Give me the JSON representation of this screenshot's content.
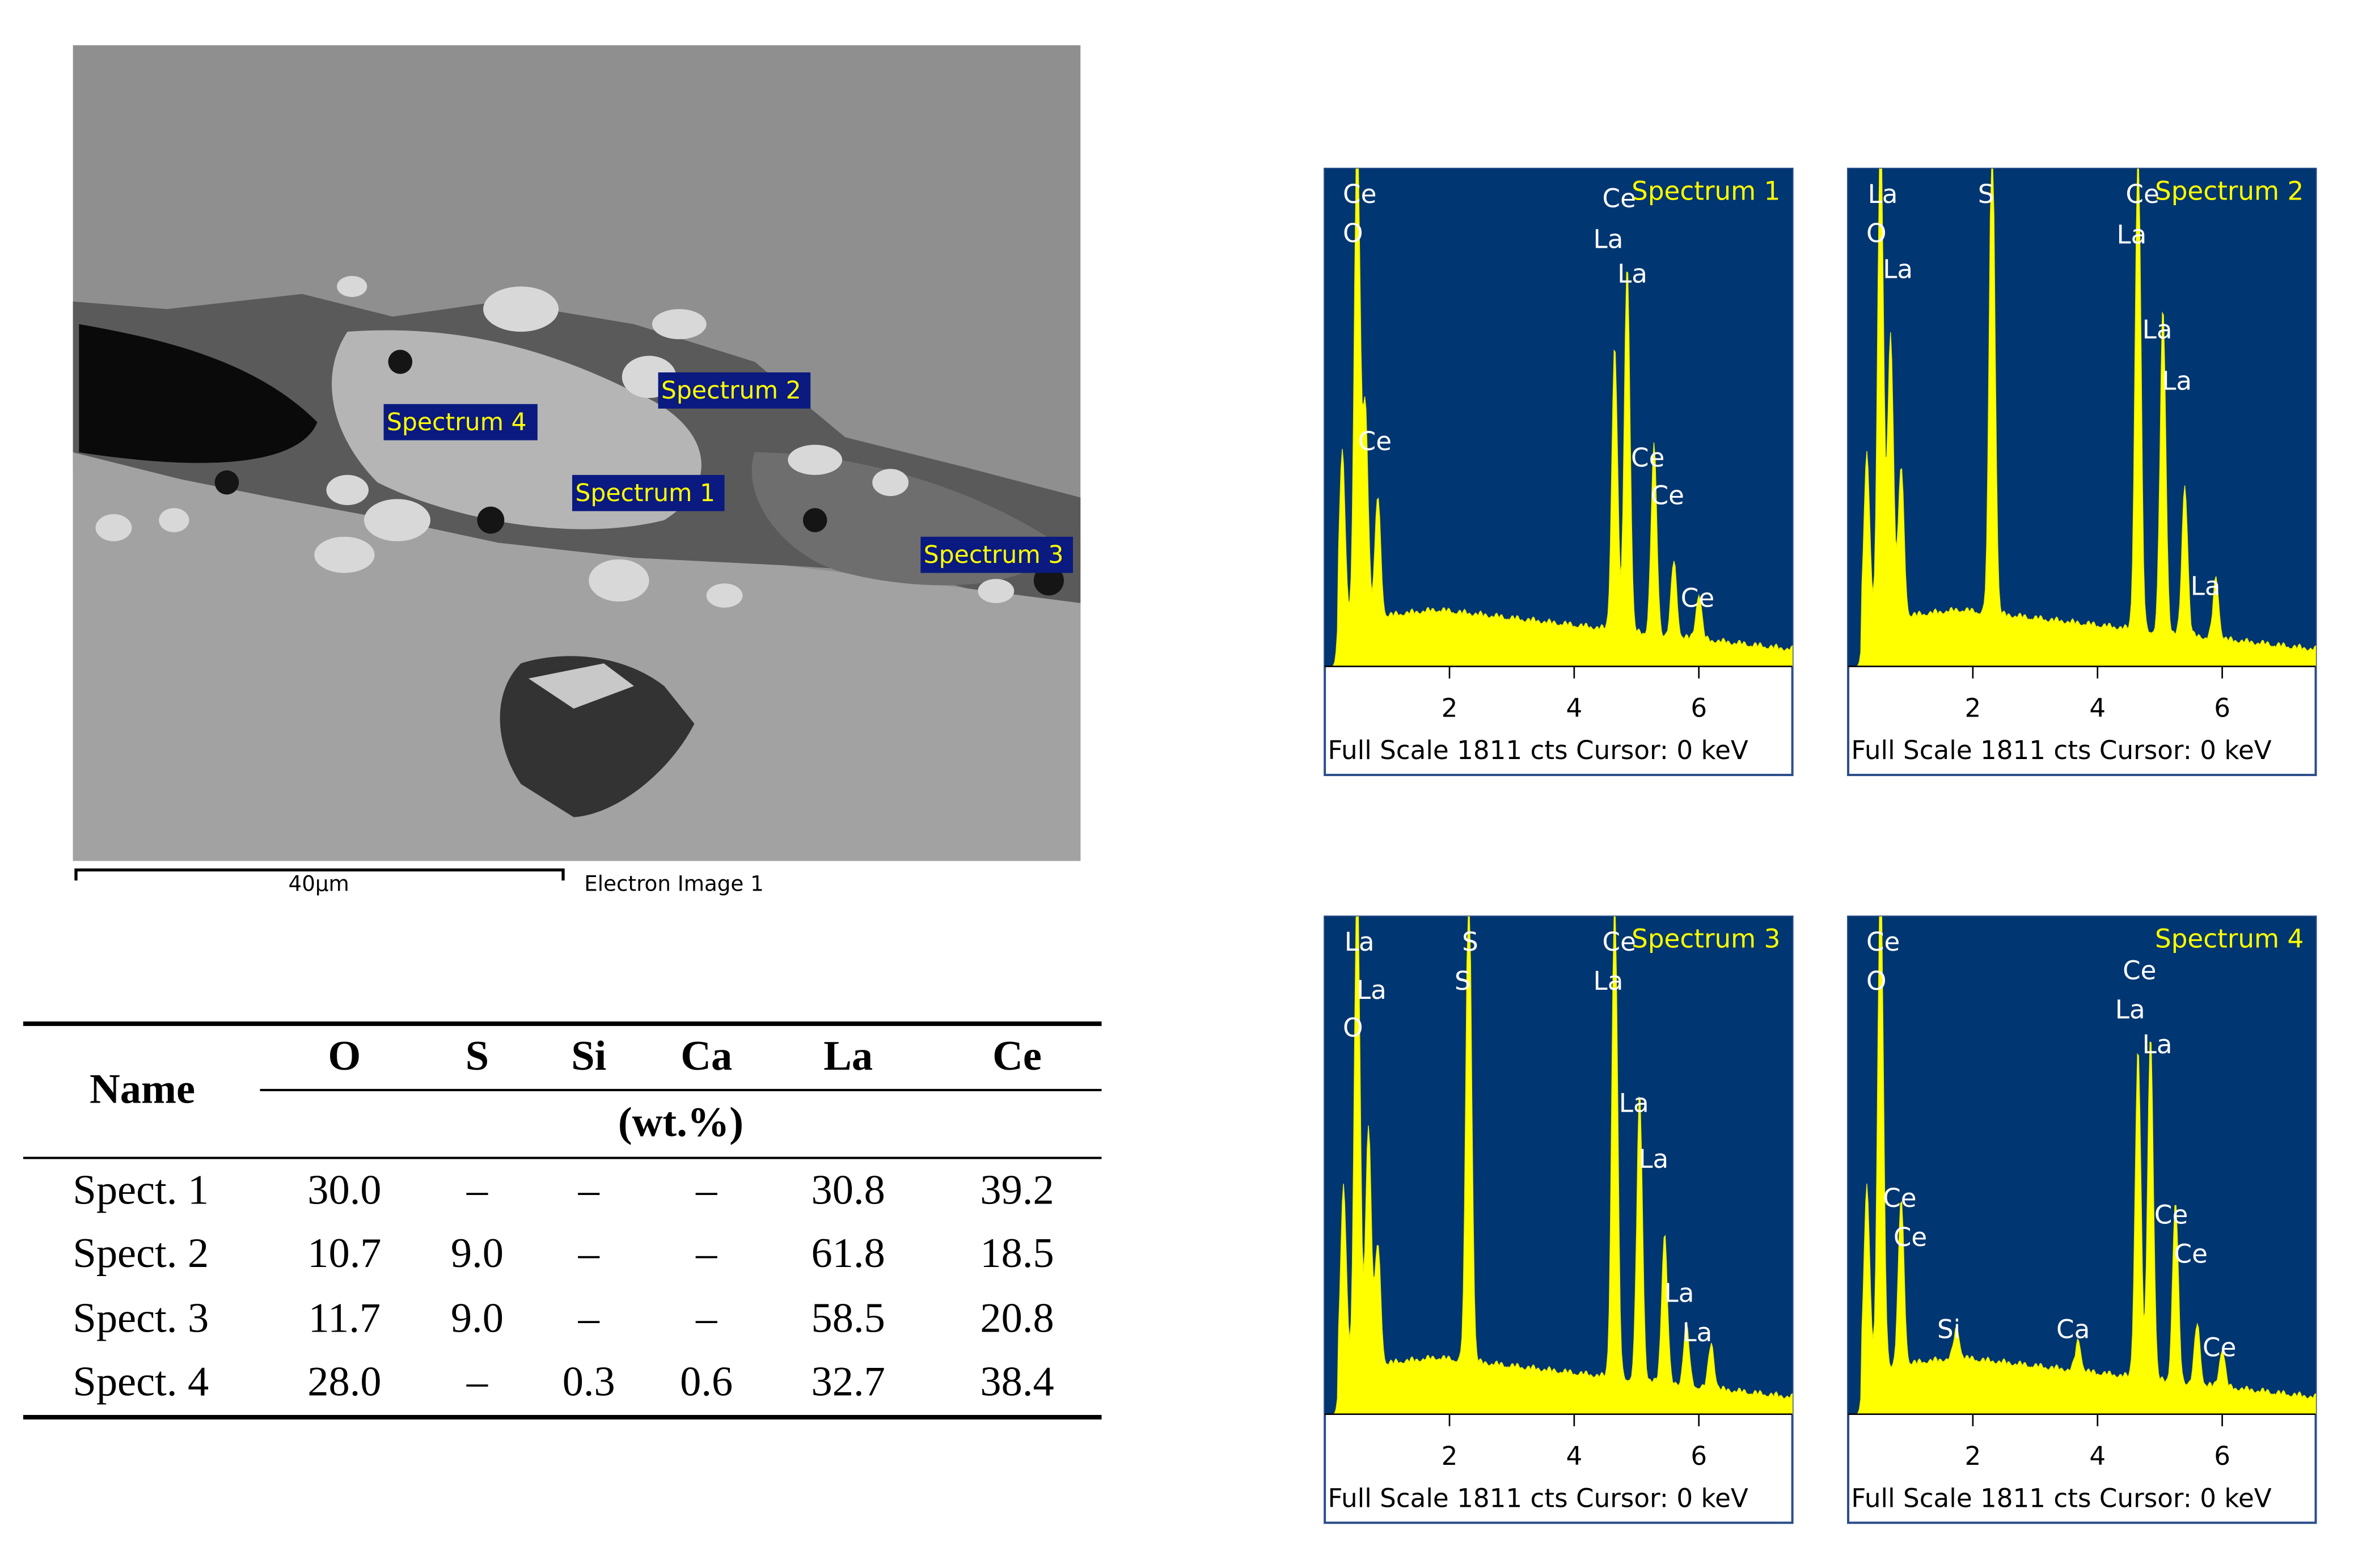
{
  "sem_image": {
    "labels": [
      "Spectrum 4",
      "Spectrum 2",
      "Spectrum 1",
      "Spectrum 3"
    ],
    "scale_bar": "40µm",
    "caption": "Electron Image 1"
  },
  "table": {
    "header": {
      "name": "Name",
      "elements": [
        "O",
        "S",
        "Si",
        "Ca",
        "La",
        "Ce"
      ],
      "unit": "(wt.%)"
    },
    "rows": [
      [
        "Spect. 1",
        "30.0",
        "–",
        "–",
        "–",
        "30.8",
        "39.2"
      ],
      [
        "Spect. 2",
        "10.7",
        "9.0",
        "–",
        "–",
        "61.8",
        "18.5"
      ],
      [
        "Spect. 3",
        "11.7",
        "9.0",
        "–",
        "–",
        "58.5",
        "20.8"
      ],
      [
        "Spect. 4",
        "28.0",
        "–",
        "0.3",
        "0.6",
        "32.7",
        "38.4"
      ]
    ]
  },
  "spectra": [
    {
      "title": "Spectrum 1",
      "xlim": [
        0,
        7.5
      ],
      "xticks": [
        2,
        4,
        6
      ],
      "footer": "Full Scale 1811 cts Cursor: 0 keV",
      "peak_labels": [
        "Ce",
        "O",
        "Ce",
        "Ce",
        "La",
        "La",
        "Ce",
        "Ce",
        "Ce"
      ]
    },
    {
      "title": "Spectrum 2",
      "xlim": [
        0,
        7.5
      ],
      "xticks": [
        2,
        4,
        6
      ],
      "footer": "Full Scale 1811 cts Cursor: 0 keV",
      "peak_labels": [
        "La",
        "O",
        "La",
        "S",
        "Ce",
        "La",
        "La",
        "La",
        "La"
      ]
    },
    {
      "title": "Spectrum 3",
      "xlim": [
        0,
        7.5
      ],
      "xticks": [
        2,
        4,
        6
      ],
      "footer": "Full Scale 1811 cts Cursor: 0 keV",
      "peak_labels": [
        "La",
        "La",
        "O",
        "S",
        "S",
        "Ce",
        "La",
        "La",
        "La",
        "La",
        "La"
      ]
    },
    {
      "title": "Spectrum 4",
      "xlim": [
        0,
        7.5
      ],
      "xticks": [
        2,
        4,
        6
      ],
      "footer": "Full Scale 1811 cts Cursor: 0 keV",
      "peak_labels": [
        "Ce",
        "O",
        "Ce",
        "La",
        "La",
        "Ce",
        "Ce",
        "Si",
        "Ca",
        "Ce",
        "Ce",
        "Ce"
      ]
    }
  ]
}
